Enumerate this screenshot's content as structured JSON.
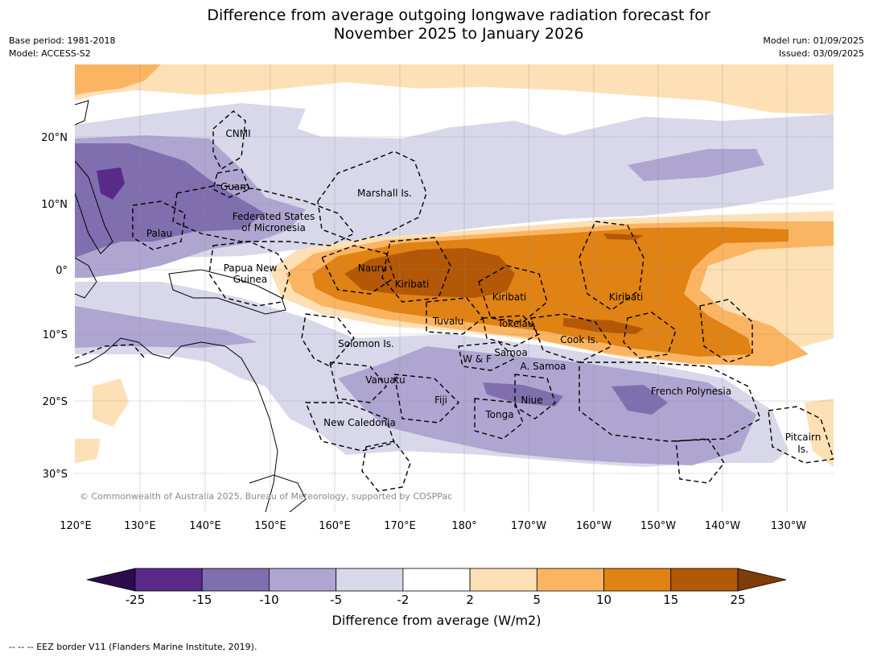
{
  "title_line1": "Difference from average outgoing longwave radiation forecast for",
  "title_line2": "November 2025 to January 2026",
  "meta_left": {
    "line1": "Base period: 1981-2018",
    "line2": "Model: ACCESS-S2"
  },
  "meta_right": {
    "line1": "Model run: 01/09/2025",
    "line2": "Issued: 03/09/2025"
  },
  "copyright": "© Commonwealth of Australia 2025, Bureau of Meteorology, supported by COSPPac",
  "lon_ticks": [
    "120°E",
    "130°E",
    "140°E",
    "150°E",
    "160°E",
    "170°E",
    "180°",
    "170°W",
    "160°W",
    "150°W",
    "140°W",
    "130°W"
  ],
  "lat_ticks": [
    "20°N",
    "10°N",
    "0°",
    "10°S",
    "20°S",
    "30°S"
  ],
  "regions": [
    {
      "name": "CNMI"
    },
    {
      "name": "Guam"
    },
    {
      "name": "Marshall Is."
    },
    {
      "name": "Federated States"
    },
    {
      "name": "of Micronesia"
    },
    {
      "name": "Palau"
    },
    {
      "name": "Papua New"
    },
    {
      "name": "Guinea"
    },
    {
      "name": "Nauru"
    },
    {
      "name": "Kiribati"
    },
    {
      "name": "Kiribati"
    },
    {
      "name": "Kiribati"
    },
    {
      "name": "Tuvalu"
    },
    {
      "name": "Tokelau"
    },
    {
      "name": "Cook Is."
    },
    {
      "name": "Solomon Is."
    },
    {
      "name": "Samoa"
    },
    {
      "name": "W & F"
    },
    {
      "name": "A. Samoa"
    },
    {
      "name": "Vanuatu"
    },
    {
      "name": "Fiji"
    },
    {
      "name": "Niue"
    },
    {
      "name": "Tonga"
    },
    {
      "name": "French Polynesia"
    },
    {
      "name": "New Caledonia"
    },
    {
      "name": "Pitcairn"
    },
    {
      "name": "Is."
    }
  ],
  "colorbar": {
    "boundaries": [
      "-25",
      "-15",
      "-10",
      "-5",
      "-2",
      "2",
      "5",
      "10",
      "15",
      "25"
    ],
    "colors": [
      "#2d0a4e",
      "#5a2a8a",
      "#7f6fae",
      "#aea6d1",
      "#d8d8ea",
      "#ffffff",
      "#fde0b5",
      "#fbb562",
      "#e08214",
      "#b35806",
      "#7f3b08"
    ],
    "label": "Difference from average (W/m2)"
  },
  "footnote": "--  --  -- EEZ border V11 (Flanders Marine Institute, 2019).",
  "colors": {
    "land_outline": "#000000",
    "grid": "#888888"
  }
}
